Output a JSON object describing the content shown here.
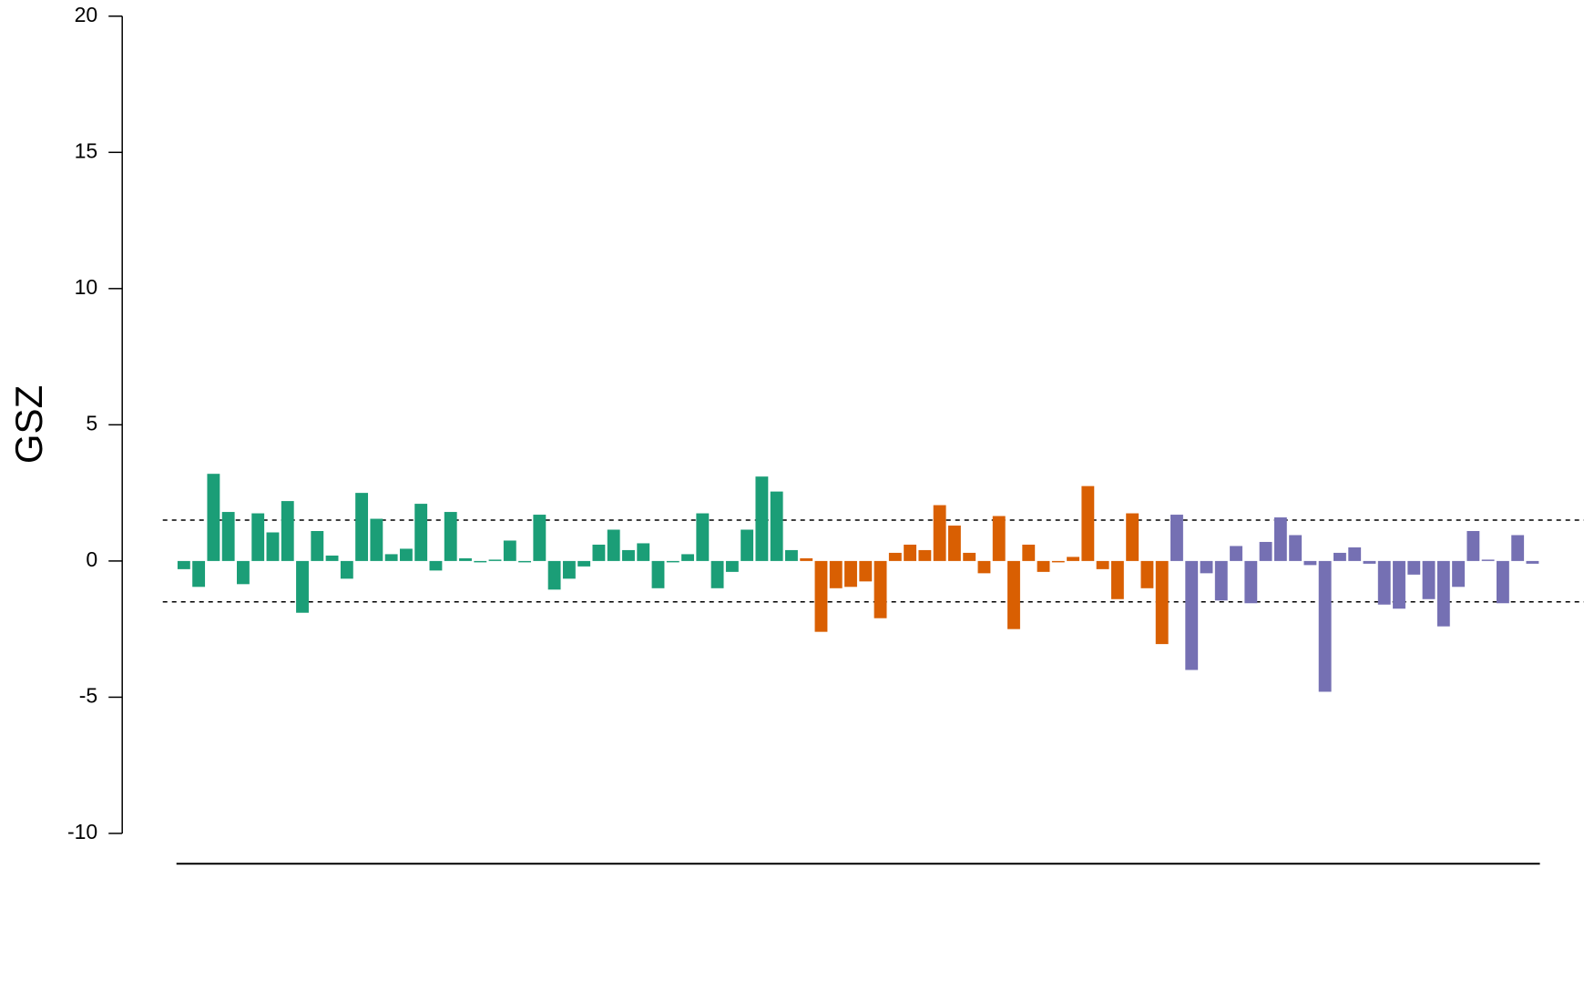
{
  "chart_data": {
    "type": "bar",
    "y_label": "GSZ",
    "categories": [
      null,
      null,
      null,
      null,
      null,
      null,
      null,
      null,
      null,
      null,
      null,
      null,
      null,
      null,
      null,
      null,
      null,
      null,
      null,
      null,
      null,
      null,
      null,
      null,
      null,
      null,
      null,
      null,
      null,
      null,
      null,
      null,
      null,
      null,
      null,
      null,
      null,
      null,
      null,
      null,
      null,
      null,
      null,
      null,
      null,
      null,
      null,
      null,
      null,
      null,
      null,
      null,
      null,
      null,
      null,
      null,
      null,
      null,
      null,
      null,
      null,
      null,
      null,
      null,
      null,
      null,
      null,
      null,
      null,
      null,
      null,
      null,
      null,
      null,
      null,
      null,
      null,
      null,
      null,
      null,
      null,
      null,
      null,
      null,
      null,
      null,
      null,
      null,
      null,
      null,
      null,
      null
    ],
    "series": [
      {
        "color": "#1b9e77",
        "values": [
          -0.3,
          -0.95,
          3.2,
          1.8,
          -0.85,
          1.75,
          1.05,
          2.2,
          -1.9,
          1.1,
          0.2,
          -0.65,
          2.5,
          1.55,
          0.25,
          0.45,
          2.1,
          -0.35,
          1.8,
          0.1,
          -0.05,
          0.05,
          0.75,
          -0.05,
          1.7,
          -1.05,
          -0.65,
          -0.2,
          0.6,
          1.15,
          0.4,
          0.65,
          -1.0,
          -0.05,
          0.25,
          1.75,
          -1.0,
          -0.4,
          1.15,
          3.1,
          2.55,
          0.4,
          null,
          null,
          null,
          null,
          null,
          null,
          null,
          null,
          null,
          null,
          null,
          null,
          null,
          null,
          null,
          null,
          null,
          null,
          null,
          null,
          null,
          null,
          null,
          null,
          null,
          null,
          null,
          null,
          null,
          null,
          null,
          null,
          null,
          null,
          null,
          null,
          null,
          null,
          null,
          null,
          null,
          null,
          null,
          null,
          null,
          null,
          null,
          null,
          null,
          null
        ]
      },
      {
        "color": "#d95f02",
        "values": [
          null,
          null,
          null,
          null,
          null,
          null,
          null,
          null,
          null,
          null,
          null,
          null,
          null,
          null,
          null,
          null,
          null,
          null,
          null,
          null,
          null,
          null,
          null,
          null,
          null,
          null,
          null,
          null,
          null,
          null,
          null,
          null,
          null,
          null,
          null,
          null,
          null,
          null,
          null,
          null,
          null,
          null,
          0.1,
          -2.6,
          -1.0,
          -0.95,
          -0.75,
          -2.1,
          0.3,
          0.6,
          0.4,
          2.05,
          1.3,
          0.3,
          -0.45,
          1.65,
          -2.5,
          0.6,
          -0.4,
          -0.05,
          0.15,
          2.75,
          -0.3,
          -1.4,
          1.75,
          -1.0,
          -3.05,
          null,
          null,
          null,
          null,
          null,
          null,
          null,
          null,
          null,
          null,
          null,
          null,
          null,
          null,
          null,
          null,
          null,
          null,
          null,
          null,
          null,
          null,
          null,
          null,
          null
        ]
      },
      {
        "color": "#7570b3",
        "values": [
          null,
          null,
          null,
          null,
          null,
          null,
          null,
          null,
          null,
          null,
          null,
          null,
          null,
          null,
          null,
          null,
          null,
          null,
          null,
          null,
          null,
          null,
          null,
          null,
          null,
          null,
          null,
          null,
          null,
          null,
          null,
          null,
          null,
          null,
          null,
          null,
          null,
          null,
          null,
          null,
          null,
          null,
          null,
          null,
          null,
          null,
          null,
          null,
          null,
          null,
          null,
          null,
          null,
          null,
          null,
          null,
          null,
          null,
          null,
          null,
          null,
          null,
          null,
          null,
          null,
          null,
          null,
          1.7,
          -4.0,
          -0.45,
          -1.45,
          0.55,
          -1.55,
          0.7,
          1.6,
          0.95,
          -0.15,
          -4.8,
          0.3,
          0.5,
          -0.1,
          -1.6,
          -1.75,
          -0.5,
          -1.4,
          -2.4,
          -0.95,
          1.1,
          0.05,
          -1.55,
          0.95,
          -0.1
        ]
      }
    ],
    "ylim": [
      -10,
      20
    ],
    "yticks": [
      -10,
      -5,
      0,
      5,
      10,
      15,
      20
    ],
    "thresholds": [
      1.5,
      -1.5
    ]
  }
}
